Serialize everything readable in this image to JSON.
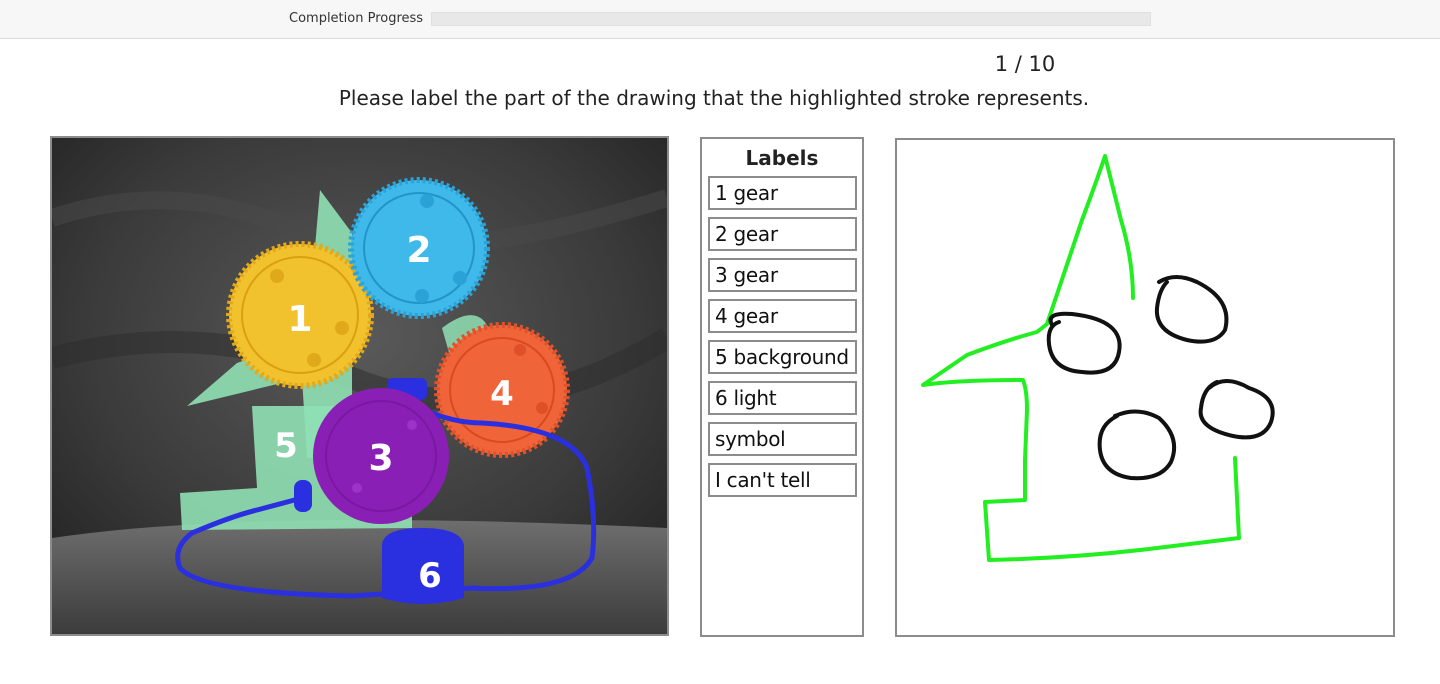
{
  "progress": {
    "label": "Completion Progress",
    "fraction": 0
  },
  "task": {
    "counter": "1 / 10",
    "instruction": "Please label the part of the drawing that the highlighted stroke represents."
  },
  "photo": {
    "region_numbers": [
      "1",
      "2",
      "3",
      "4",
      "5",
      "6"
    ],
    "colors": {
      "gear1": "#f2c12e",
      "gear2": "#3fb8ea",
      "gear3": "#8a1fb5",
      "gear4": "#f0643a",
      "background5": "#8fe0b4",
      "light6": "#2a2fe0"
    }
  },
  "labels": {
    "title": "Labels",
    "items": [
      "1 gear",
      "2 gear",
      "3 gear",
      "4 gear",
      "5 background",
      "6 light",
      "symbol",
      "I can't tell"
    ]
  },
  "sketch": {
    "highlight_color": "#22ee22",
    "stroke_color": "#111111"
  }
}
